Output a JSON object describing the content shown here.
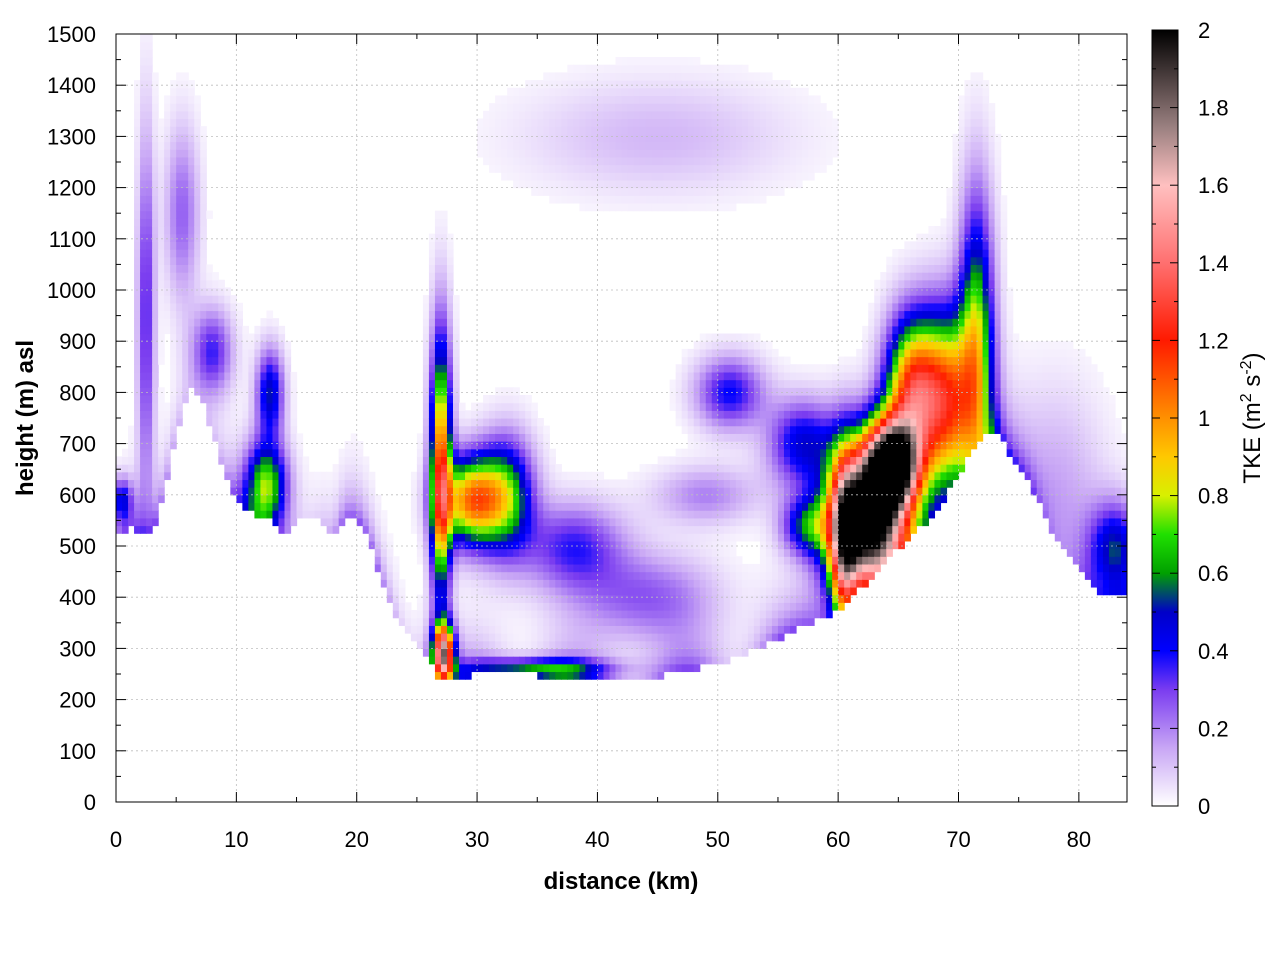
{
  "chart_data": {
    "type": "heatmap",
    "title": "",
    "xlabel": "distance (km)",
    "ylabel": "height (m) asl",
    "xlim": [
      0,
      84
    ],
    "ylim": [
      0,
      1500
    ],
    "x_ticks": [
      0,
      10,
      20,
      30,
      40,
      50,
      60,
      70,
      80
    ],
    "x_tick_labels": [
      "0",
      "10",
      "20",
      "30",
      "40",
      "50",
      "60",
      "70",
      "80"
    ],
    "y_ticks": [
      0,
      100,
      200,
      300,
      400,
      500,
      600,
      700,
      800,
      900,
      1000,
      1100,
      1200,
      1300,
      1400,
      1500
    ],
    "y_tick_labels": [
      "0",
      "100",
      "200",
      "300",
      "400",
      "500",
      "600",
      "700",
      "800",
      "900",
      "1000",
      "1100",
      "1200",
      "1300",
      "1400",
      "1500"
    ],
    "grid": true,
    "colorbar": {
      "label_text": "TKE (m",
      "label_sup1": "2",
      "label_mid": " s",
      "label_sup2": "-2",
      "label_end": ")",
      "range": [
        0,
        2
      ],
      "ticks": [
        0,
        0.2,
        0.4,
        0.6,
        0.8,
        1,
        1.2,
        1.4,
        1.6,
        1.8,
        2
      ],
      "tick_labels": [
        "0",
        "0.2",
        "0.4",
        "0.6",
        "0.8",
        "1",
        "1.2",
        "1.4",
        "1.6",
        "1.8",
        "2"
      ],
      "palette": [
        [
          0.0,
          "#ffffff"
        ],
        [
          0.15,
          "#c8a6f5"
        ],
        [
          0.3,
          "#7a3cf0"
        ],
        [
          0.4,
          "#0000ff"
        ],
        [
          0.5,
          "#0000c8"
        ],
        [
          0.6,
          "#00a000"
        ],
        [
          0.7,
          "#20e000"
        ],
        [
          0.8,
          "#d8f000"
        ],
        [
          0.9,
          "#ffc800"
        ],
        [
          1.0,
          "#ff9000"
        ],
        [
          1.2,
          "#ff1a00"
        ],
        [
          1.4,
          "#ff7070"
        ],
        [
          1.6,
          "#ffc0c0"
        ],
        [
          1.75,
          "#9a8080"
        ],
        [
          2.0,
          "#000000"
        ]
      ]
    },
    "terrain": [
      [
        0,
        520
      ],
      [
        1,
        535
      ],
      [
        2,
        530
      ],
      [
        2.5,
        515
      ],
      [
        3,
        525
      ],
      [
        4,
        600
      ],
      [
        5,
        720
      ],
      [
        6,
        810
      ],
      [
        7,
        800
      ],
      [
        8,
        720
      ],
      [
        9,
        640
      ],
      [
        10,
        590
      ],
      [
        11,
        570
      ],
      [
        12,
        560
      ],
      [
        13,
        545
      ],
      [
        14,
        525
      ],
      [
        15,
        545
      ],
      [
        16,
        560
      ],
      [
        17,
        545
      ],
      [
        18,
        510
      ],
      [
        19,
        555
      ],
      [
        20,
        550
      ],
      [
        21,
        510
      ],
      [
        22,
        440
      ],
      [
        23,
        380
      ],
      [
        24,
        330
      ],
      [
        25,
        310
      ],
      [
        26,
        280
      ],
      [
        27,
        235
      ],
      [
        28,
        240
      ],
      [
        30,
        250
      ],
      [
        33,
        255
      ],
      [
        36,
        245
      ],
      [
        40,
        240
      ],
      [
        45,
        245
      ],
      [
        50,
        270
      ],
      [
        53,
        300
      ],
      [
        56,
        330
      ],
      [
        58,
        355
      ],
      [
        60,
        375
      ],
      [
        62,
        420
      ],
      [
        64,
        470
      ],
      [
        66,
        520
      ],
      [
        68,
        560
      ],
      [
        70,
        640
      ],
      [
        72,
        720
      ],
      [
        73,
        730
      ],
      [
        74,
        690
      ],
      [
        76,
        620
      ],
      [
        78,
        520
      ],
      [
        80,
        460
      ],
      [
        82,
        400
      ],
      [
        84,
        410
      ]
    ],
    "tke_features": [
      {
        "x": 27,
        "y": 650,
        "sx": 0.6,
        "sy": 180,
        "v": 1.1
      },
      {
        "x": 27.2,
        "y": 290,
        "sx": 0.6,
        "sy": 40,
        "v": 1.6
      },
      {
        "x": 29.5,
        "y": 590,
        "sx": 1.8,
        "sy": 60,
        "v": 1.0
      },
      {
        "x": 32.5,
        "y": 600,
        "sx": 1.6,
        "sy": 80,
        "v": 0.6
      },
      {
        "x": 35,
        "y": 260,
        "sx": 4,
        "sy": 15,
        "v": 0.55
      },
      {
        "x": 38,
        "y": 500,
        "sx": 3,
        "sy": 60,
        "v": 0.35
      },
      {
        "x": 44,
        "y": 400,
        "sx": 4,
        "sy": 60,
        "v": 0.25
      },
      {
        "x": 51,
        "y": 800,
        "sx": 2,
        "sy": 50,
        "v": 0.4
      },
      {
        "x": 49,
        "y": 600,
        "sx": 3,
        "sy": 40,
        "v": 0.2
      },
      {
        "x": 57.5,
        "y": 540,
        "sx": 1.5,
        "sy": 40,
        "v": 0.5
      },
      {
        "x": 57,
        "y": 700,
        "sx": 2,
        "sy": 60,
        "v": 0.45
      },
      {
        "x": 62.5,
        "y": 550,
        "sx": 2.2,
        "sy": 100,
        "v": 2.2
      },
      {
        "x": 64.5,
        "y": 660,
        "sx": 1.5,
        "sy": 60,
        "v": 1.8
      },
      {
        "x": 60.5,
        "y": 500,
        "sx": 0.8,
        "sy": 120,
        "v": 0.9
      },
      {
        "x": 66,
        "y": 800,
        "sx": 1.5,
        "sy": 100,
        "v": 1.0
      },
      {
        "x": 69,
        "y": 780,
        "sx": 1.8,
        "sy": 120,
        "v": 1.1
      },
      {
        "x": 71.5,
        "y": 900,
        "sx": 1.0,
        "sy": 200,
        "v": 0.7
      },
      {
        "x": 12.5,
        "y": 620,
        "sx": 1.2,
        "sy": 60,
        "v": 0.7
      },
      {
        "x": 12.8,
        "y": 800,
        "sx": 0.8,
        "sy": 60,
        "v": 0.5
      },
      {
        "x": 8,
        "y": 880,
        "sx": 1.2,
        "sy": 60,
        "v": 0.35
      },
      {
        "x": 2.5,
        "y": 950,
        "sx": 0.5,
        "sy": 250,
        "v": 0.35
      },
      {
        "x": 0.5,
        "y": 590,
        "sx": 0.6,
        "sy": 30,
        "v": 0.4
      },
      {
        "x": 5.5,
        "y": 1150,
        "sx": 1.0,
        "sy": 120,
        "v": 0.25
      },
      {
        "x": 83,
        "y": 500,
        "sx": 1.5,
        "sy": 60,
        "v": 0.45
      },
      {
        "x": 78,
        "y": 600,
        "sx": 3,
        "sy": 150,
        "v": 0.15
      },
      {
        "x": 45,
        "y": 1300,
        "sx": 8,
        "sy": 80,
        "v": 0.12
      }
    ]
  }
}
